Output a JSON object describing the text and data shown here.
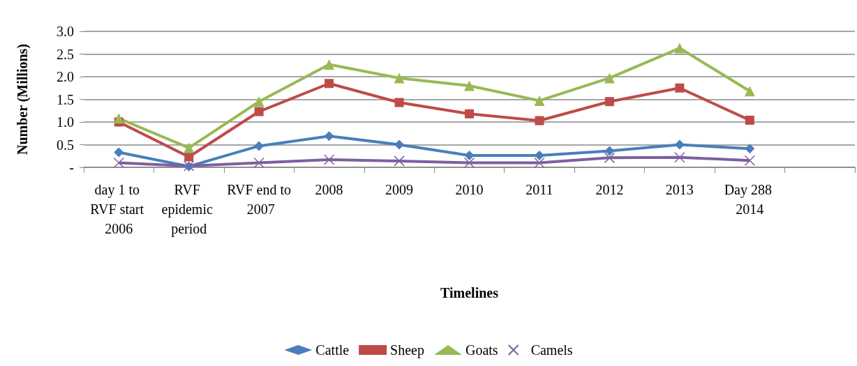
{
  "chart_data": {
    "type": "line",
    "xlabel": "Timelines",
    "ylabel": "Number (Millions)",
    "categories": [
      "day 1 to RVF start 2006",
      "RVF epidemic period",
      "RVF end to 2007",
      "2008",
      "2009",
      "2010",
      "2011",
      "2012",
      "2013",
      "Day 288 2014",
      null
    ],
    "series": [
      {
        "name": "Cattle",
        "color": "#4a7ebb",
        "marker": "diamond",
        "values": [
          0.33,
          0.02,
          0.47,
          0.69,
          0.5,
          0.26,
          0.26,
          0.36,
          0.5,
          0.41,
          null
        ]
      },
      {
        "name": "Sheep",
        "color": "#be4b48",
        "marker": "square",
        "values": [
          1.0,
          0.23,
          1.23,
          1.85,
          1.43,
          1.18,
          1.03,
          1.45,
          1.75,
          1.04,
          null
        ]
      },
      {
        "name": "Goats",
        "color": "#98b954",
        "marker": "triangle",
        "values": [
          1.08,
          0.43,
          1.45,
          2.27,
          1.97,
          1.8,
          1.47,
          1.97,
          2.63,
          1.68,
          null
        ]
      },
      {
        "name": "Camels",
        "color": "#7d5fa0",
        "marker": "cross",
        "values": [
          0.1,
          0.03,
          0.1,
          0.17,
          0.14,
          0.1,
          0.1,
          0.21,
          0.22,
          0.15,
          null
        ]
      }
    ],
    "ylim": [
      0,
      3
    ],
    "yticks": [
      {
        "value": 0,
        "label": "-"
      },
      0.5,
      {
        "value": 1,
        "label": "1.0"
      },
      1.5,
      {
        "value": 2,
        "label": "2.0"
      },
      2.5,
      {
        "value": 3,
        "label": "3.0"
      }
    ],
    "grid": "y",
    "legend": "bottom"
  }
}
